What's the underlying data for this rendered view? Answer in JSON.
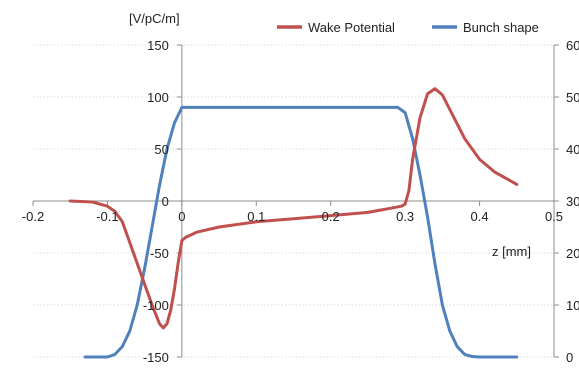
{
  "chart_data": {
    "type": "line",
    "ylabel": "[V/pC/m]",
    "xlabel": "z [mm]",
    "xlim": [
      -0.2,
      0.5
    ],
    "ylim": [
      -150,
      150
    ],
    "y2lim": [
      0,
      60
    ],
    "x_ticks": [
      "-0.2",
      "-0.1",
      "0",
      "0.1",
      "0.2",
      "0.3",
      "0.4",
      "0.5"
    ],
    "x_tick_values": [
      -0.2,
      -0.1,
      0,
      0.1,
      0.2,
      0.3,
      0.4,
      0.5
    ],
    "y_ticks": [
      "150",
      "100",
      "50",
      "0",
      "-50",
      "-100",
      "-150"
    ],
    "y_tick_values": [
      150,
      100,
      50,
      0,
      -50,
      -100,
      -150
    ],
    "y2_ticks": [
      "60",
      "50",
      "40",
      "30",
      "20",
      "10",
      "0"
    ],
    "y2_tick_values": [
      60,
      50,
      40,
      30,
      20,
      10,
      0
    ],
    "grid": "horizontal",
    "legend_placement": "top-right",
    "series": [
      {
        "name": "Wake Potential",
        "axis": "left",
        "color": "#c0504d",
        "x": [
          -0.15,
          -0.12,
          -0.1,
          -0.09,
          -0.08,
          -0.07,
          -0.06,
          -0.05,
          -0.04,
          -0.03,
          -0.025,
          -0.02,
          -0.015,
          -0.01,
          -0.005,
          0,
          0.005,
          0.02,
          0.05,
          0.1,
          0.15,
          0.2,
          0.25,
          0.28,
          0.295,
          0.3,
          0.305,
          0.31,
          0.32,
          0.33,
          0.34,
          0.35,
          0.36,
          0.38,
          0.4,
          0.42,
          0.45
        ],
        "y": [
          0,
          -1,
          -5,
          -10,
          -20,
          -40,
          -60,
          -80,
          -100,
          -118,
          -122,
          -118,
          -105,
          -85,
          -60,
          -38,
          -35,
          -30,
          -25,
          -20,
          -17,
          -14,
          -11,
          -7,
          -5,
          -3,
          10,
          40,
          80,
          103,
          108,
          102,
          88,
          60,
          40,
          28,
          16
        ]
      },
      {
        "name": "Bunch shape",
        "axis": "right",
        "color": "#4f81bd",
        "x": [
          -0.13,
          -0.1,
          -0.09,
          -0.08,
          -0.07,
          -0.06,
          -0.05,
          -0.04,
          -0.03,
          -0.02,
          -0.01,
          0,
          0.01,
          0.29,
          0.3,
          0.31,
          0.32,
          0.33,
          0.34,
          0.35,
          0.36,
          0.37,
          0.38,
          0.39,
          0.4,
          0.45
        ],
        "y": [
          0,
          0,
          0.5,
          2,
          5,
          10,
          17,
          25,
          33,
          40,
          45,
          48,
          48,
          48,
          47,
          42,
          35,
          27,
          18,
          10,
          5,
          2,
          0.5,
          0.1,
          0,
          0
        ]
      }
    ]
  }
}
